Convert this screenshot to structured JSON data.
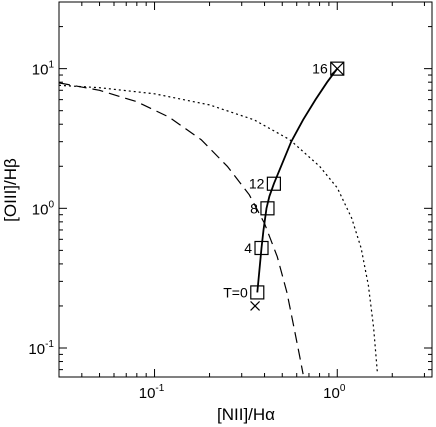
{
  "chart_data": {
    "type": "line",
    "xscale": "log",
    "yscale": "log",
    "xlim": [
      0.03,
      3.3
    ],
    "ylim": [
      0.062,
      30
    ],
    "xlabel": "[NII]/Hα",
    "ylabel": "[OIII]/Hβ",
    "x_tick_labels": [
      {
        "value": 0.1,
        "base": "10",
        "exp": "-1"
      },
      {
        "value": 1,
        "base": "10",
        "exp": "0"
      }
    ],
    "y_tick_labels": [
      {
        "value": 0.1,
        "base": "10",
        "exp": "-1"
      },
      {
        "value": 1,
        "base": "10",
        "exp": "0"
      },
      {
        "value": 10,
        "base": "10",
        "exp": "1"
      }
    ],
    "grid": false,
    "legend": "none",
    "series": [
      {
        "style": "dashed",
        "x": [
          0.03,
          0.05,
          0.08,
          0.12,
          0.18,
          0.25,
          0.33,
          0.4,
          0.47,
          0.53,
          0.58,
          0.62,
          0.65
        ],
        "y": [
          7.9,
          7.0,
          5.8,
          4.5,
          3.1,
          2.0,
          1.25,
          0.78,
          0.45,
          0.25,
          0.14,
          0.09,
          0.065
        ]
      },
      {
        "style": "dotted",
        "x": [
          0.03,
          0.05,
          0.1,
          0.2,
          0.35,
          0.55,
          0.8,
          1.0,
          1.2,
          1.35,
          1.48,
          1.58,
          1.66
        ],
        "y": [
          7.6,
          7.3,
          6.6,
          5.5,
          4.3,
          3.1,
          2.0,
          1.4,
          0.85,
          0.52,
          0.28,
          0.14,
          0.065
        ]
      },
      {
        "style": "solid",
        "x": [
          0.365,
          0.375,
          0.385,
          0.395,
          0.41,
          0.425,
          0.45,
          0.5,
          0.56,
          0.65,
          0.76,
          0.88,
          1.0
        ],
        "y": [
          0.25,
          0.36,
          0.52,
          0.7,
          1.0,
          1.22,
          1.5,
          2.1,
          3.0,
          4.3,
          6.0,
          8.0,
          10.0
        ]
      }
    ],
    "annotations": [
      {
        "label": "T=0",
        "x": 0.365,
        "y": 0.25,
        "label_side": "left",
        "marker": "square"
      },
      {
        "label": "4",
        "x": 0.385,
        "y": 0.52,
        "label_side": "left",
        "marker": "square"
      },
      {
        "label": "8",
        "x": 0.415,
        "y": 1.0,
        "label_side": "left",
        "marker": "square"
      },
      {
        "label": "12",
        "x": 0.45,
        "y": 1.5,
        "label_side": "left",
        "marker": "square"
      },
      {
        "label": "16",
        "x": 1.0,
        "y": 10.0,
        "label_side": "left",
        "marker": "square-x"
      },
      {
        "label": "",
        "x": 0.355,
        "y": 0.2,
        "marker": "x"
      }
    ]
  }
}
